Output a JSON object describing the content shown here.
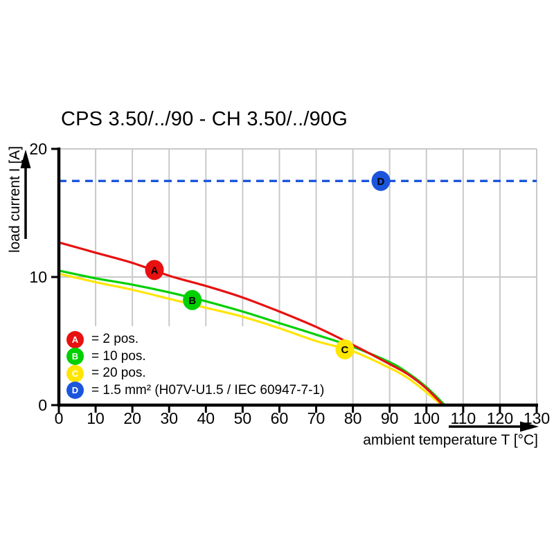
{
  "title": "CPS 3.50/../90 - CH 3.50/../90G",
  "y_axis": {
    "label": "load current I [A]",
    "ticks": [
      0,
      10,
      20
    ]
  },
  "x_axis": {
    "label": "ambient temperature T [°C]",
    "ticks": [
      0,
      10,
      20,
      30,
      40,
      50,
      60,
      70,
      80,
      90,
      100,
      110,
      120,
      130
    ]
  },
  "colors": {
    "red": "#e81010",
    "green": "#00cf00",
    "yellow": "#ffe500",
    "blue": "#1b55dc",
    "grid": "#c9c9c9",
    "axis": "#000000"
  },
  "legend": {
    "items": [
      {
        "key": "A",
        "color": "#e81010",
        "label": "= 2 pos."
      },
      {
        "key": "B",
        "color": "#00cf00",
        "label": "= 10 pos."
      },
      {
        "key": "C",
        "color": "#ffe500",
        "label": "= 20 pos."
      },
      {
        "key": "D",
        "color": "#1b55dc",
        "label": "= 1.5 mm² (H07V-U1.5 / IEC 60947-7-1)"
      }
    ]
  },
  "chart_data": {
    "type": "line",
    "title": "CPS 3.50/../90 - CH 3.50/../90G",
    "xlabel": "ambient temperature T [°C]",
    "ylabel": "load current I [A]",
    "xlim": [
      0,
      130
    ],
    "ylim": [
      0,
      20
    ],
    "x_ticks": [
      0,
      10,
      20,
      30,
      40,
      50,
      60,
      70,
      80,
      90,
      100,
      110,
      120,
      130
    ],
    "y_ticks": [
      0,
      10,
      20
    ],
    "y_gridlines": [
      10,
      20
    ],
    "grid": "vertical gray gridline at every 10 °C, horizontal gray gridlines at 10 A and 20 A",
    "legend_position": "bottom-left inside plot",
    "series": [
      {
        "name": "A = 2 pos.",
        "color": "#e81010",
        "style": "solid",
        "marker": {
          "label": "A",
          "x": 26,
          "y": 10.55
        },
        "points": [
          [
            0,
            12.7
          ],
          [
            10,
            11.9
          ],
          [
            20,
            11.1
          ],
          [
            30,
            10.1
          ],
          [
            40,
            9.3
          ],
          [
            50,
            8.4
          ],
          [
            60,
            7.3
          ],
          [
            70,
            6.1
          ],
          [
            80,
            4.7
          ],
          [
            90,
            3.2
          ],
          [
            95,
            2.4
          ],
          [
            100,
            1.3
          ],
          [
            104.5,
            0
          ]
        ]
      },
      {
        "name": "B = 10 pos.",
        "color": "#00cf00",
        "style": "solid",
        "marker": {
          "label": "B",
          "x": 36.3,
          "y": 8.2
        },
        "points": [
          [
            0,
            10.5
          ],
          [
            10,
            9.9
          ],
          [
            20,
            9.4
          ],
          [
            30,
            8.8
          ],
          [
            40,
            8.1
          ],
          [
            50,
            7.3
          ],
          [
            60,
            6.4
          ],
          [
            70,
            5.5
          ],
          [
            80,
            4.55
          ],
          [
            90,
            3.35
          ],
          [
            95,
            2.5
          ],
          [
            100,
            1.4
          ],
          [
            105,
            0
          ]
        ]
      },
      {
        "name": "C = 20 pos.",
        "color": "#ffe500",
        "style": "solid",
        "marker": {
          "label": "C",
          "x": 77.8,
          "y": 4.35
        },
        "points": [
          [
            0,
            10.25
          ],
          [
            10,
            9.6
          ],
          [
            20,
            9.0
          ],
          [
            30,
            8.3
          ],
          [
            40,
            7.6
          ],
          [
            50,
            6.9
          ],
          [
            60,
            6.0
          ],
          [
            70,
            5.0
          ],
          [
            80,
            4.2
          ],
          [
            90,
            2.9
          ],
          [
            95,
            2.1
          ],
          [
            100,
            1.0
          ],
          [
            104.2,
            0
          ]
        ]
      },
      {
        "name": "D = 1.5 mm² (H07V-U1.5 / IEC 60947-7-1)",
        "color": "#1b55dc",
        "style": "dashed",
        "marker": {
          "label": "D",
          "x": 87.6,
          "y": 17.5
        },
        "points": [
          [
            0,
            17.5
          ],
          [
            130,
            17.5
          ]
        ]
      }
    ]
  }
}
